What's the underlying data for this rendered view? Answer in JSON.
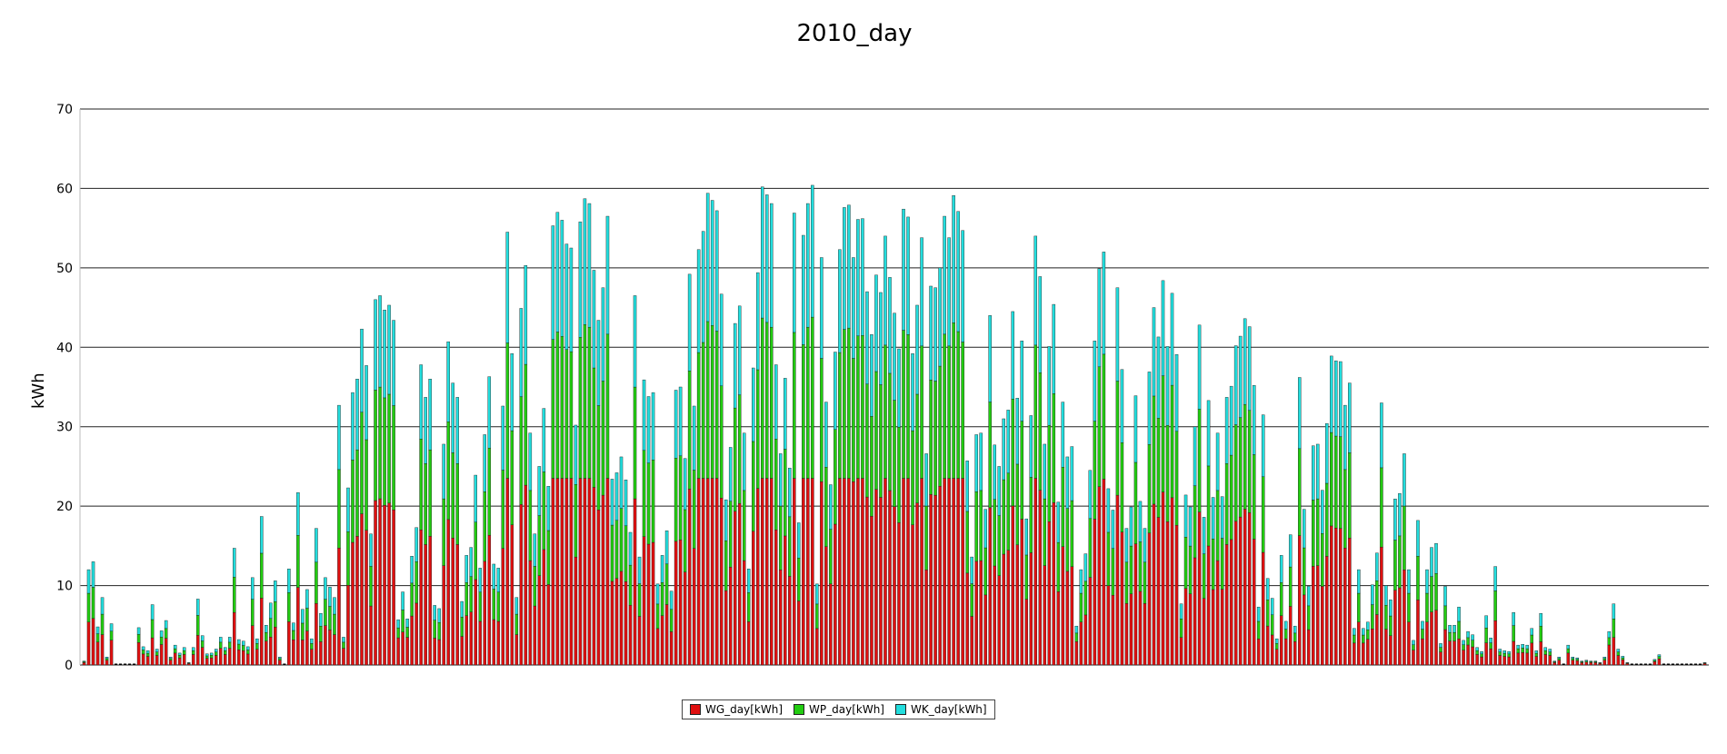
{
  "chart_data": {
    "type": "bar",
    "stacked": true,
    "title": "2010_day",
    "xlabel": "",
    "ylabel": "kWh",
    "ylim": [
      0,
      70
    ],
    "yticks": [
      0,
      10,
      20,
      30,
      40,
      50,
      60,
      70
    ],
    "grid": "horizontal",
    "legend_position": "bottom-center",
    "colors": {
      "WG_day[kWh]": "#e01010",
      "WP_day[kWh]": "#22cc11",
      "WK_day[kWh]": "#22dddd"
    },
    "series_names": [
      "WG_day[kWh]",
      "WP_day[kWh]",
      "WK_day[kWh]"
    ],
    "totals": [
      0.5,
      12,
      13,
      4.8,
      8.5,
      1,
      5.2,
      0,
      0,
      0,
      0,
      0,
      4.7,
      2.3,
      1.8,
      7.6,
      2,
      4.3,
      5.6,
      1,
      2.5,
      1.5,
      2.2,
      0.3,
      2.2,
      8.3,
      3.7,
      1.4,
      1.5,
      2,
      3.5,
      2.2,
      3.5,
      14.7,
      3.2,
      3,
      2.3,
      11,
      3.3,
      18.7,
      5,
      7.8,
      10.6,
      1,
      0,
      12.1,
      5.3,
      21.7,
      7,
      9.5,
      3.3,
      17.2,
      6.5,
      11,
      9.8,
      8.5,
      32.7,
      3.5,
      22.3,
      34.3,
      36,
      42.3,
      37.7,
      16.5,
      46,
      46.5,
      44.7,
      45.3,
      43.4,
      5.7,
      9.2,
      5.8,
      13.7,
      17.3,
      37.8,
      33.7,
      36,
      7.5,
      7.1,
      27.8,
      40.7,
      35.5,
      33.7,
      8,
      13.8,
      14.8,
      23.9,
      12.2,
      29,
      36.3,
      12.7,
      12.2,
      32.6,
      54.5,
      39.2,
      8.5,
      44.9,
      50.3,
      29.2,
      16.5,
      25,
      32.3,
      22.5,
      55.3,
      57,
      56,
      53,
      52.5,
      30.2,
      55.8,
      58.7,
      58.1,
      49.7,
      43.4,
      47.5,
      56.5,
      23.4,
      24.2,
      26.2,
      23.3,
      16.7,
      46.5,
      13.6,
      35.9,
      33.8,
      34.3,
      10.2,
      13.8,
      16.9,
      9.3,
      34.6,
      35,
      26,
      49.2,
      32.6,
      52.3,
      54.6,
      59.4,
      58.5,
      57.2,
      46.7,
      20.8,
      27.4,
      43,
      45.2,
      29.2,
      12.1,
      37.4,
      49.4,
      60.2,
      59.2,
      58.1,
      37.8,
      26.6,
      36.1,
      24.8,
      56.9,
      17.9,
      54.1,
      58.1,
      60.4,
      10.2,
      51.3,
      33.1,
      22.7,
      39.4,
      52.3,
      57.6,
      57.9,
      51.3,
      56.1,
      56.2,
      47,
      41.6,
      49.1,
      46.9,
      54,
      48.8,
      44.3,
      39.8,
      57.4,
      56.4,
      39.2,
      45.3,
      53.8,
      26.6,
      47.7,
      47.5,
      50,
      56.5,
      53.8,
      59.1,
      57.1,
      54.7,
      25.7,
      13.6,
      29,
      29.2,
      19.6,
      44,
      27.7,
      25,
      31,
      32.1,
      44.5,
      33.6,
      40.8,
      18.4,
      31.4,
      54,
      48.9,
      27.8,
      40.1,
      45.4,
      20.5,
      33.1,
      26.2,
      27.5,
      4.9,
      12,
      14,
      24.5,
      40.8,
      49.9,
      52,
      22.2,
      19.5,
      47.5,
      37.2,
      17.2,
      19.9,
      33.9,
      20.6,
      17.2,
      36.9,
      45,
      41.3,
      48.4,
      40.1,
      46.8,
      39.1,
      7.7,
      21.4,
      19.9,
      30,
      42.8,
      18.6,
      33.3,
      21.1,
      29.2,
      21.2,
      33.7,
      35.1,
      40.2,
      41.4,
      43.6,
      42.6,
      35.2,
      7.3,
      31.5,
      10.9,
      8.4,
      3.3,
      13.8,
      5.5,
      16.4,
      4.9,
      36.2,
      19.6,
      9.9,
      27.6,
      27.8,
      22,
      30.4,
      38.9,
      38.3,
      38.2,
      32.7,
      35.5,
      4.6,
      12,
      4.6,
      5.4,
      10.1,
      14.1,
      33,
      10,
      8.2,
      20.9,
      21.6,
      26.6,
      12,
      3.1,
      18.2,
      5.5,
      12,
      14.8,
      15.3,
      2.7,
      9.9,
      5,
      5,
      7.3,
      3.1,
      4.2,
      3.8,
      2.2,
      1.7,
      6.2,
      3.4,
      12.4,
      2,
      1.8,
      1.7,
      6.6,
      2.5,
      2.6,
      2.5,
      4.6,
      1.8,
      6.5,
      2.2,
      2,
      0.5,
      1,
      0,
      2.5,
      1,
      0.9,
      0.5,
      0.6,
      0.5,
      0.5,
      0.3,
      1,
      4.2,
      7.7,
      2,
      1.1,
      0.3,
      0,
      0,
      0,
      0,
      0,
      0.7,
      1.3,
      0,
      0,
      0,
      0,
      0,
      0,
      0,
      0,
      0,
      0.3
    ]
  }
}
